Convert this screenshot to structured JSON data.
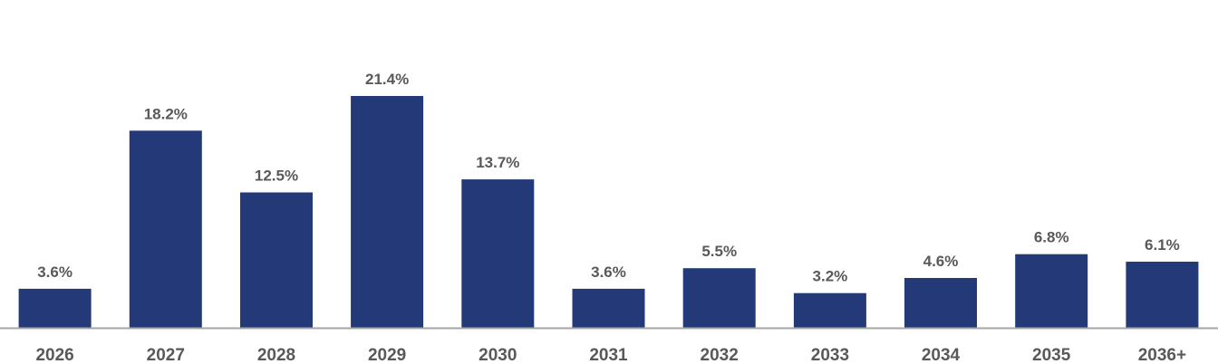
{
  "chart_data": {
    "type": "bar",
    "title": "",
    "xlabel": "",
    "ylabel": "",
    "categories": [
      "2026",
      "2027",
      "2028",
      "2029",
      "2030",
      "2031",
      "2032",
      "2033",
      "2034",
      "2035",
      "2036+"
    ],
    "values": [
      3.6,
      18.2,
      12.5,
      21.4,
      13.7,
      3.6,
      5.5,
      3.2,
      4.6,
      6.8,
      6.1
    ],
    "data_labels": [
      "3.6%",
      "18.2%",
      "12.5%",
      "21.4%",
      "13.7%",
      "3.6%",
      "5.5%",
      "3.2%",
      "4.6%",
      "6.8%",
      "6.1%"
    ],
    "value_unit": "%",
    "ylim": [
      0,
      25
    ],
    "grid": false,
    "legend": "none",
    "colors": {
      "bar": "#243a78",
      "axis": "#a6a6a6",
      "label": "#595959"
    }
  }
}
